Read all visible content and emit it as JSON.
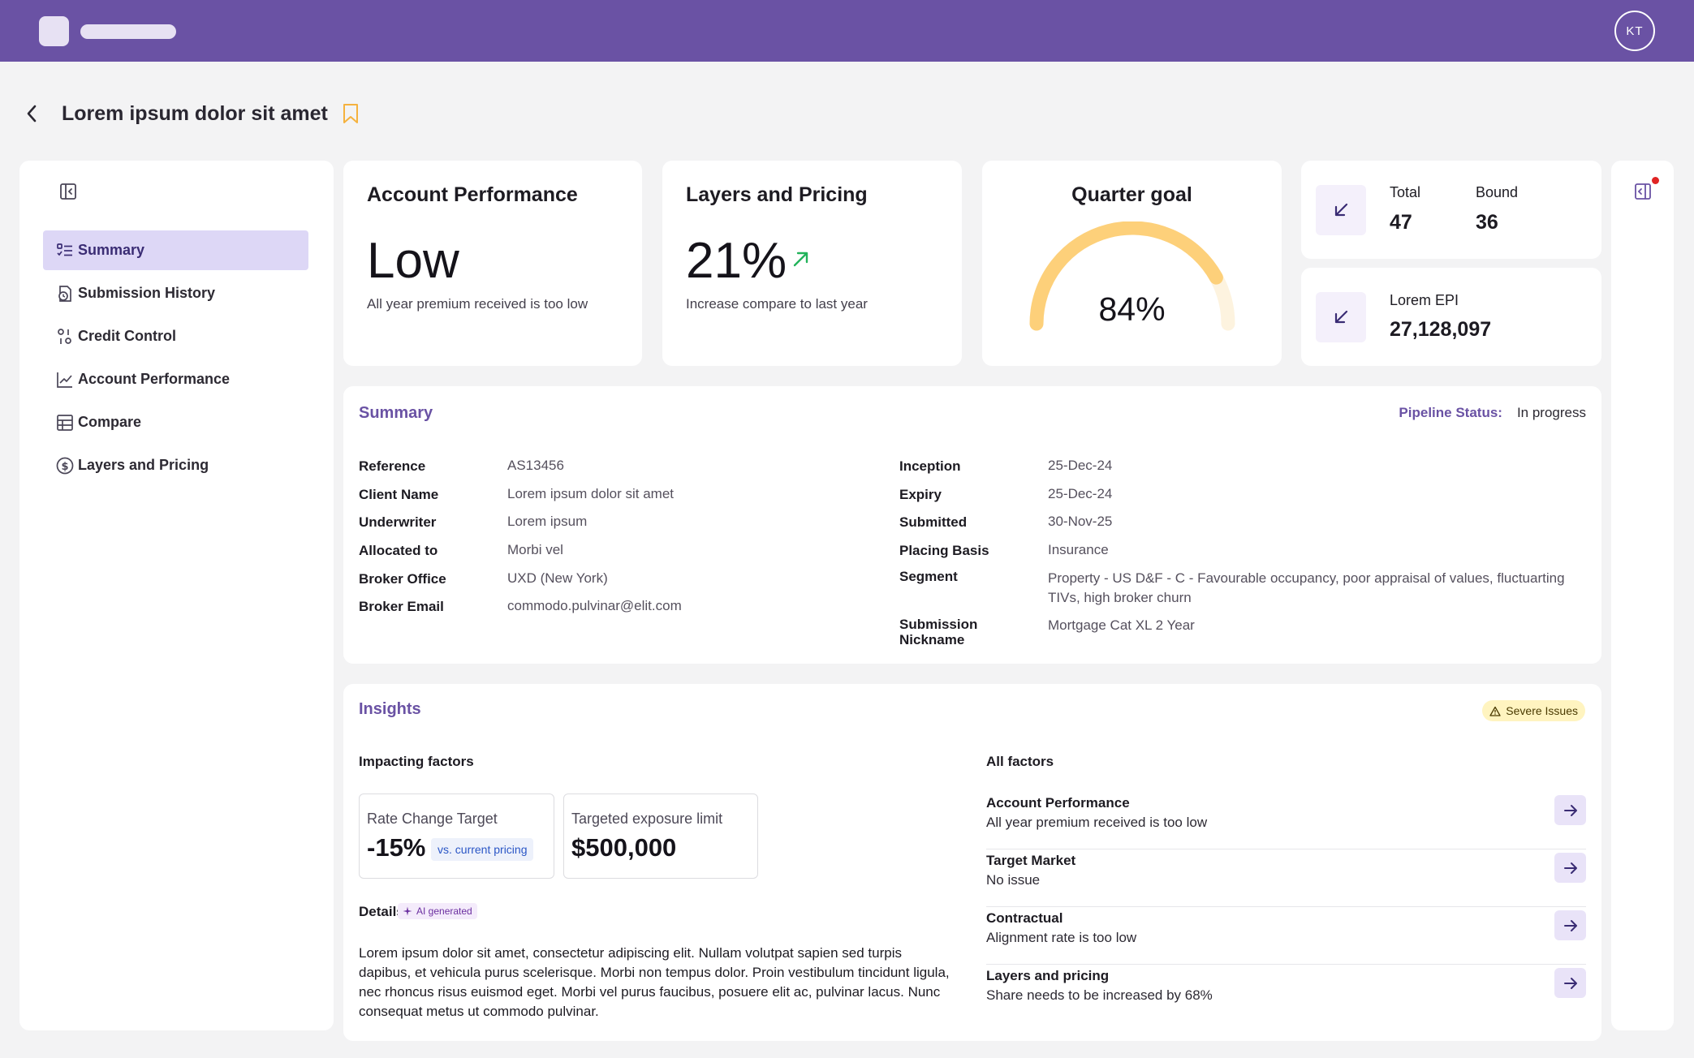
{
  "header": {
    "avatar_initials": "KT"
  },
  "page": {
    "title": "Lorem ipsum dolor sit amet"
  },
  "sidebar": {
    "items": [
      {
        "label": "Summary",
        "icon": "summary-list-icon",
        "active": true
      },
      {
        "label": "Submission History",
        "icon": "history-icon"
      },
      {
        "label": "Credit Control",
        "icon": "credit-control-icon"
      },
      {
        "label": "Account Performance",
        "icon": "line-chart-icon"
      },
      {
        "label": "Compare",
        "icon": "table-icon"
      },
      {
        "label": "Layers and Pricing",
        "icon": "dollar-circle-icon"
      }
    ]
  },
  "kpis": {
    "account_performance": {
      "title": "Account Performance",
      "value": "Low",
      "subtitle": "All year premium received is too low"
    },
    "layers_pricing": {
      "title": "Layers and Pricing",
      "value": "21%",
      "subtitle": "Increase compare to last year",
      "trend": "up"
    },
    "quarter_goal": {
      "title": "Quarter goal",
      "value": "84%",
      "progress": 0.84
    },
    "totals": {
      "total_label": "Total",
      "total_value": "47",
      "bound_label": "Bound",
      "bound_value": "36"
    },
    "epi": {
      "label": "Lorem EPI",
      "value": "27,128,097"
    }
  },
  "summary": {
    "title": "Summary",
    "pipeline_label": "Pipeline Status:",
    "pipeline_value": "In progress",
    "left_fields": [
      {
        "label": "Reference",
        "value": "AS13456"
      },
      {
        "label": "Client Name",
        "value": "Lorem ipsum dolor sit amet"
      },
      {
        "label": "Underwriter",
        "value": "Lorem ipsum"
      },
      {
        "label": "Allocated to",
        "value": "Morbi vel"
      },
      {
        "label": "Broker Office",
        "value": "UXD (New York)"
      },
      {
        "label": "Broker Email",
        "value": "commodo.pulvinar@elit.com"
      }
    ],
    "right_fields": [
      {
        "label": "Inception",
        "value": "25-Dec-24"
      },
      {
        "label": "Expiry",
        "value": "25-Dec-24"
      },
      {
        "label": "Submitted",
        "value": "30-Nov-25"
      },
      {
        "label": "Placing Basis",
        "value": "Insurance"
      },
      {
        "label": "Segment",
        "value": "Property - US D&F - C - Favourable occupancy, poor appraisal of values, fluctuarting TIVs, high broker churn"
      },
      {
        "label": "Submission Nickname",
        "value": "Mortgage Cat XL 2 Year"
      }
    ]
  },
  "insights": {
    "title": "Insights",
    "badge": "Severe Issues",
    "impacting_title": "Impacting factors",
    "rate_change": {
      "label": "Rate Change Target",
      "value": "-15%",
      "chip": "vs. current pricing"
    },
    "exposure": {
      "label": "Targeted exposure limit",
      "value": "$500,000"
    },
    "details_title": "Details",
    "ai_chip": "AI generated",
    "details_text": "Lorem ipsum dolor sit amet, consectetur adipiscing elit. Nullam volutpat sapien sed turpis dapibus, et vehicula purus scelerisque. Morbi non tempus dolor. Proin vestibulum tincidunt ligula, nec rhoncus risus euismod eget. Morbi vel purus faucibus, posuere elit ac, pulvinar lacus. Nunc consequat metus ut commodo pulvinar.",
    "all_factors_title": "All factors",
    "factors": [
      {
        "title": "Account Performance",
        "subtitle": "All year premium received is too low"
      },
      {
        "title": "Target Market",
        "subtitle": "No issue"
      },
      {
        "title": "Contractual",
        "subtitle": "Alignment rate is too low"
      },
      {
        "title": "Layers and pricing",
        "subtitle": "Share needs to be increased by 68%"
      }
    ]
  },
  "colors": {
    "brand": "#6a52a4",
    "gauge": "#fdd07a",
    "gauge_track": "#fdf3df",
    "trend_up": "#22b35a",
    "alert": "#e02424"
  }
}
